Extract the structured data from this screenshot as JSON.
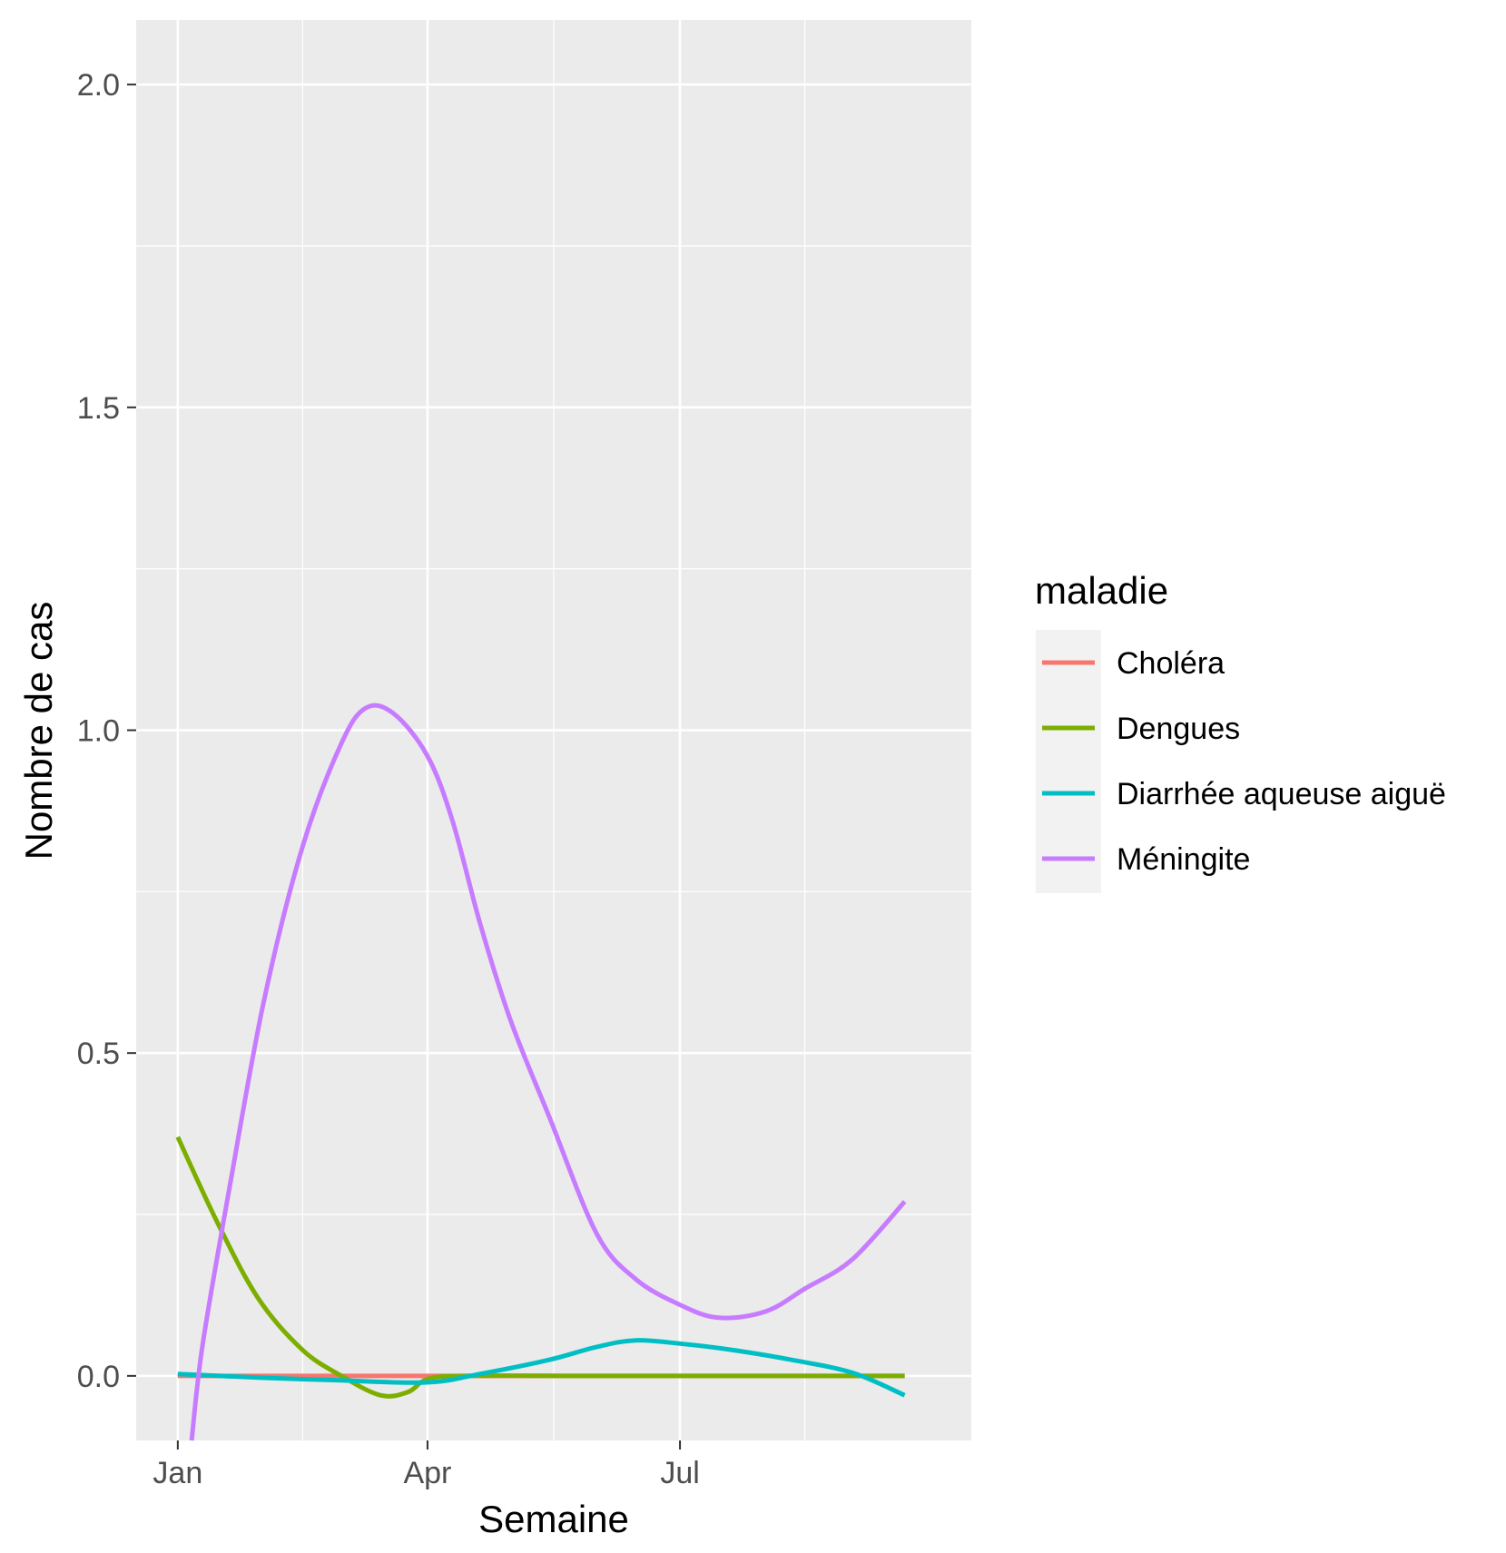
{
  "chart_data": {
    "type": "line",
    "xlabel": "Semaine",
    "ylabel": "Nombre de cas",
    "x_ticks": [
      {
        "label": "Jan",
        "date": "2023-01-01"
      },
      {
        "label": "Apr",
        "date": "2023-04-01"
      },
      {
        "label": "Jul",
        "date": "2023-07-01"
      }
    ],
    "y_ticks": [
      {
        "label": "0.0",
        "value": 0.0
      },
      {
        "label": "0.5",
        "value": 0.5
      },
      {
        "label": "1.0",
        "value": 1.0
      },
      {
        "label": "1.5",
        "value": 1.5
      },
      {
        "label": "2.0",
        "value": 2.0
      }
    ],
    "xlim": [
      "2022-12-17",
      "2023-10-14"
    ],
    "ylim": [
      -0.1,
      2.1
    ],
    "grid": true,
    "legend_title": "maladie",
    "legend_position": "right",
    "series": [
      {
        "name": "Choléra",
        "color": "#F8766D",
        "points": [
          [
            "2023-01-01",
            0.0
          ],
          [
            "2023-04-01",
            0.0
          ],
          [
            "2023-07-01",
            0.0
          ],
          [
            "2023-09-20",
            0.0
          ]
        ]
      },
      {
        "name": "Dengues",
        "color": "#7CAE00",
        "points": [
          [
            "2023-01-01",
            0.37
          ],
          [
            "2023-01-15",
            0.24
          ],
          [
            "2023-01-30",
            0.12
          ],
          [
            "2023-02-15",
            0.04
          ],
          [
            "2023-03-01",
            0.0
          ],
          [
            "2023-03-15",
            -0.03
          ],
          [
            "2023-03-25",
            -0.025
          ],
          [
            "2023-04-01",
            -0.005
          ],
          [
            "2023-04-15",
            0.0
          ],
          [
            "2023-06-01",
            0.0
          ],
          [
            "2023-08-01",
            0.0
          ],
          [
            "2023-09-20",
            0.0
          ]
        ]
      },
      {
        "name": "Diarrhée aqueuse aiguë",
        "color": "#00BFC4",
        "points": [
          [
            "2023-01-01",
            0.003
          ],
          [
            "2023-02-01",
            -0.003
          ],
          [
            "2023-03-01",
            -0.007
          ],
          [
            "2023-04-01",
            -0.01
          ],
          [
            "2023-04-20",
            0.003
          ],
          [
            "2023-05-15",
            0.025
          ],
          [
            "2023-06-01",
            0.045
          ],
          [
            "2023-06-15",
            0.055
          ],
          [
            "2023-07-01",
            0.05
          ],
          [
            "2023-07-20",
            0.04
          ],
          [
            "2023-08-10",
            0.025
          ],
          [
            "2023-09-01",
            0.005
          ],
          [
            "2023-09-20",
            -0.03
          ]
        ]
      },
      {
        "name": "Méningite",
        "color": "#C77CFF",
        "points": [
          [
            "2023-01-06",
            -0.1
          ],
          [
            "2023-01-10",
            0.05
          ],
          [
            "2023-01-20",
            0.3
          ],
          [
            "2023-02-01",
            0.58
          ],
          [
            "2023-02-15",
            0.82
          ],
          [
            "2023-03-01",
            0.98
          ],
          [
            "2023-03-10",
            1.035
          ],
          [
            "2023-03-20",
            1.025
          ],
          [
            "2023-04-01",
            0.96
          ],
          [
            "2023-04-10",
            0.86
          ],
          [
            "2023-04-20",
            0.7
          ],
          [
            "2023-05-01",
            0.55
          ],
          [
            "2023-05-15",
            0.4
          ],
          [
            "2023-06-01",
            0.22
          ],
          [
            "2023-06-15",
            0.15
          ],
          [
            "2023-07-01",
            0.11
          ],
          [
            "2023-07-15",
            0.09
          ],
          [
            "2023-08-01",
            0.1
          ],
          [
            "2023-08-15",
            0.135
          ],
          [
            "2023-09-01",
            0.18
          ],
          [
            "2023-09-20",
            0.27
          ]
        ]
      }
    ]
  }
}
